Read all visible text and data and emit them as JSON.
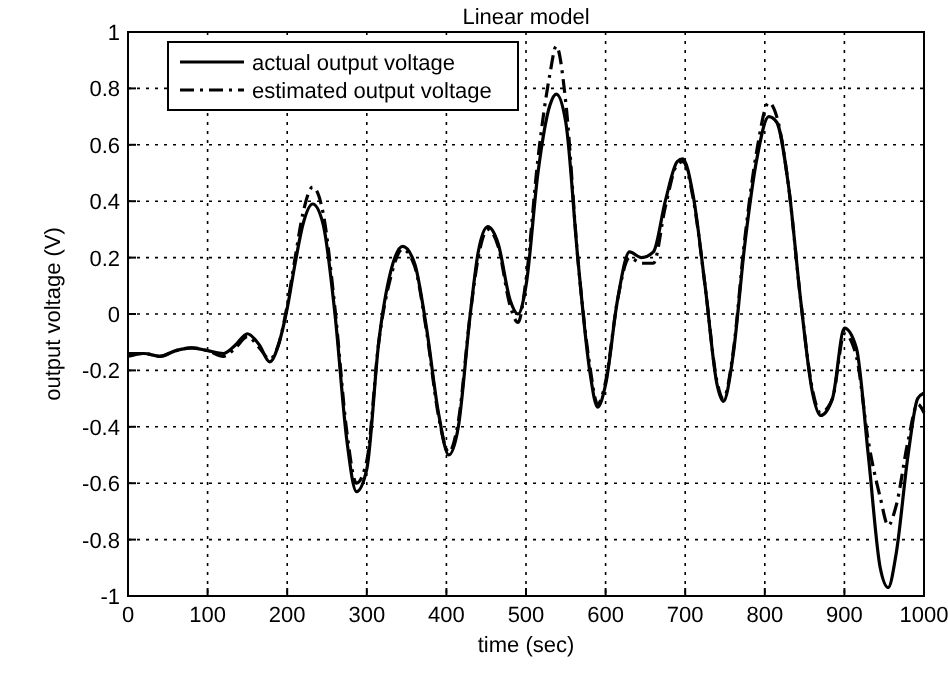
{
  "chart_data": {
    "type": "line",
    "title": "Linear model",
    "xlabel": "time (sec)",
    "ylabel": "output voltage (V)",
    "xlim": [
      0,
      1000
    ],
    "xticks": [
      0,
      100,
      200,
      300,
      400,
      500,
      600,
      700,
      800,
      900,
      1000
    ],
    "ylim": [
      -1,
      1
    ],
    "yticks": [
      -1,
      -0.8,
      -0.6,
      -0.4,
      -0.2,
      0,
      0.2,
      0.4,
      0.6,
      0.8,
      1
    ],
    "grid": true,
    "legend": "top left",
    "series": [
      {
        "name": "actual output voltage",
        "color": "#000000",
        "line_style": "solid",
        "x": [
          0,
          20,
          40,
          60,
          80,
          100,
          120,
          135,
          150,
          165,
          178,
          190,
          200,
          210,
          220,
          232,
          245,
          260,
          275,
          287,
          300,
          315,
          330,
          345,
          360,
          375,
          390,
          403,
          415,
          430,
          440,
          452,
          465,
          480,
          490,
          500,
          515,
          530,
          538,
          550,
          565,
          580,
          590,
          600,
          615,
          630,
          645,
          660,
          675,
          690,
          697,
          710,
          725,
          740,
          748,
          760,
          775,
          790,
          805,
          815,
          830,
          845,
          860,
          870,
          885,
          900,
          915,
          930,
          945,
          955,
          965,
          980,
          992,
          1000
        ],
        "values": [
          -0.14,
          -0.14,
          -0.15,
          -0.13,
          -0.12,
          -0.13,
          -0.14,
          -0.11,
          -0.07,
          -0.11,
          -0.17,
          -0.1,
          0.02,
          0.18,
          0.32,
          0.39,
          0.32,
          0.0,
          -0.45,
          -0.63,
          -0.55,
          -0.1,
          0.15,
          0.24,
          0.18,
          -0.05,
          -0.35,
          -0.5,
          -0.4,
          0.0,
          0.22,
          0.31,
          0.25,
          0.05,
          0.0,
          0.1,
          0.5,
          0.74,
          0.78,
          0.68,
          0.2,
          -0.2,
          -0.33,
          -0.25,
          0.05,
          0.22,
          0.2,
          0.22,
          0.4,
          0.54,
          0.55,
          0.42,
          0.1,
          -0.25,
          -0.31,
          -0.15,
          0.25,
          0.55,
          0.7,
          0.68,
          0.45,
          0.05,
          -0.28,
          -0.36,
          -0.3,
          -0.05,
          -0.12,
          -0.5,
          -0.9,
          -0.97,
          -0.85,
          -0.5,
          -0.3,
          -0.28
        ]
      },
      {
        "name": "estimated output voltage",
        "color": "#000000",
        "line_style": "dashdot",
        "x": [
          0,
          20,
          40,
          60,
          80,
          100,
          120,
          135,
          150,
          165,
          178,
          190,
          200,
          210,
          220,
          232,
          245,
          260,
          275,
          287,
          300,
          315,
          330,
          345,
          360,
          375,
          390,
          403,
          415,
          430,
          440,
          452,
          465,
          480,
          490,
          500,
          515,
          530,
          538,
          550,
          565,
          580,
          590,
          600,
          615,
          630,
          645,
          660,
          675,
          690,
          697,
          710,
          725,
          740,
          748,
          760,
          775,
          790,
          805,
          815,
          830,
          845,
          860,
          870,
          885,
          900,
          915,
          930,
          945,
          955,
          965,
          980,
          992,
          1000
        ],
        "values": [
          -0.15,
          -0.14,
          -0.15,
          -0.13,
          -0.12,
          -0.13,
          -0.15,
          -0.12,
          -0.08,
          -0.12,
          -0.16,
          -0.1,
          0.03,
          0.2,
          0.36,
          0.45,
          0.36,
          0.02,
          -0.42,
          -0.6,
          -0.52,
          -0.1,
          0.13,
          0.23,
          0.17,
          -0.06,
          -0.36,
          -0.49,
          -0.38,
          0.0,
          0.2,
          0.3,
          0.24,
          0.03,
          -0.03,
          0.12,
          0.55,
          0.85,
          0.95,
          0.75,
          0.2,
          -0.18,
          -0.32,
          -0.24,
          0.05,
          0.2,
          0.18,
          0.18,
          0.38,
          0.53,
          0.54,
          0.41,
          0.1,
          -0.24,
          -0.3,
          -0.14,
          0.27,
          0.58,
          0.75,
          0.7,
          0.45,
          0.05,
          -0.27,
          -0.35,
          -0.3,
          -0.07,
          -0.15,
          -0.45,
          -0.65,
          -0.75,
          -0.68,
          -0.45,
          -0.32,
          -0.35
        ]
      }
    ]
  }
}
